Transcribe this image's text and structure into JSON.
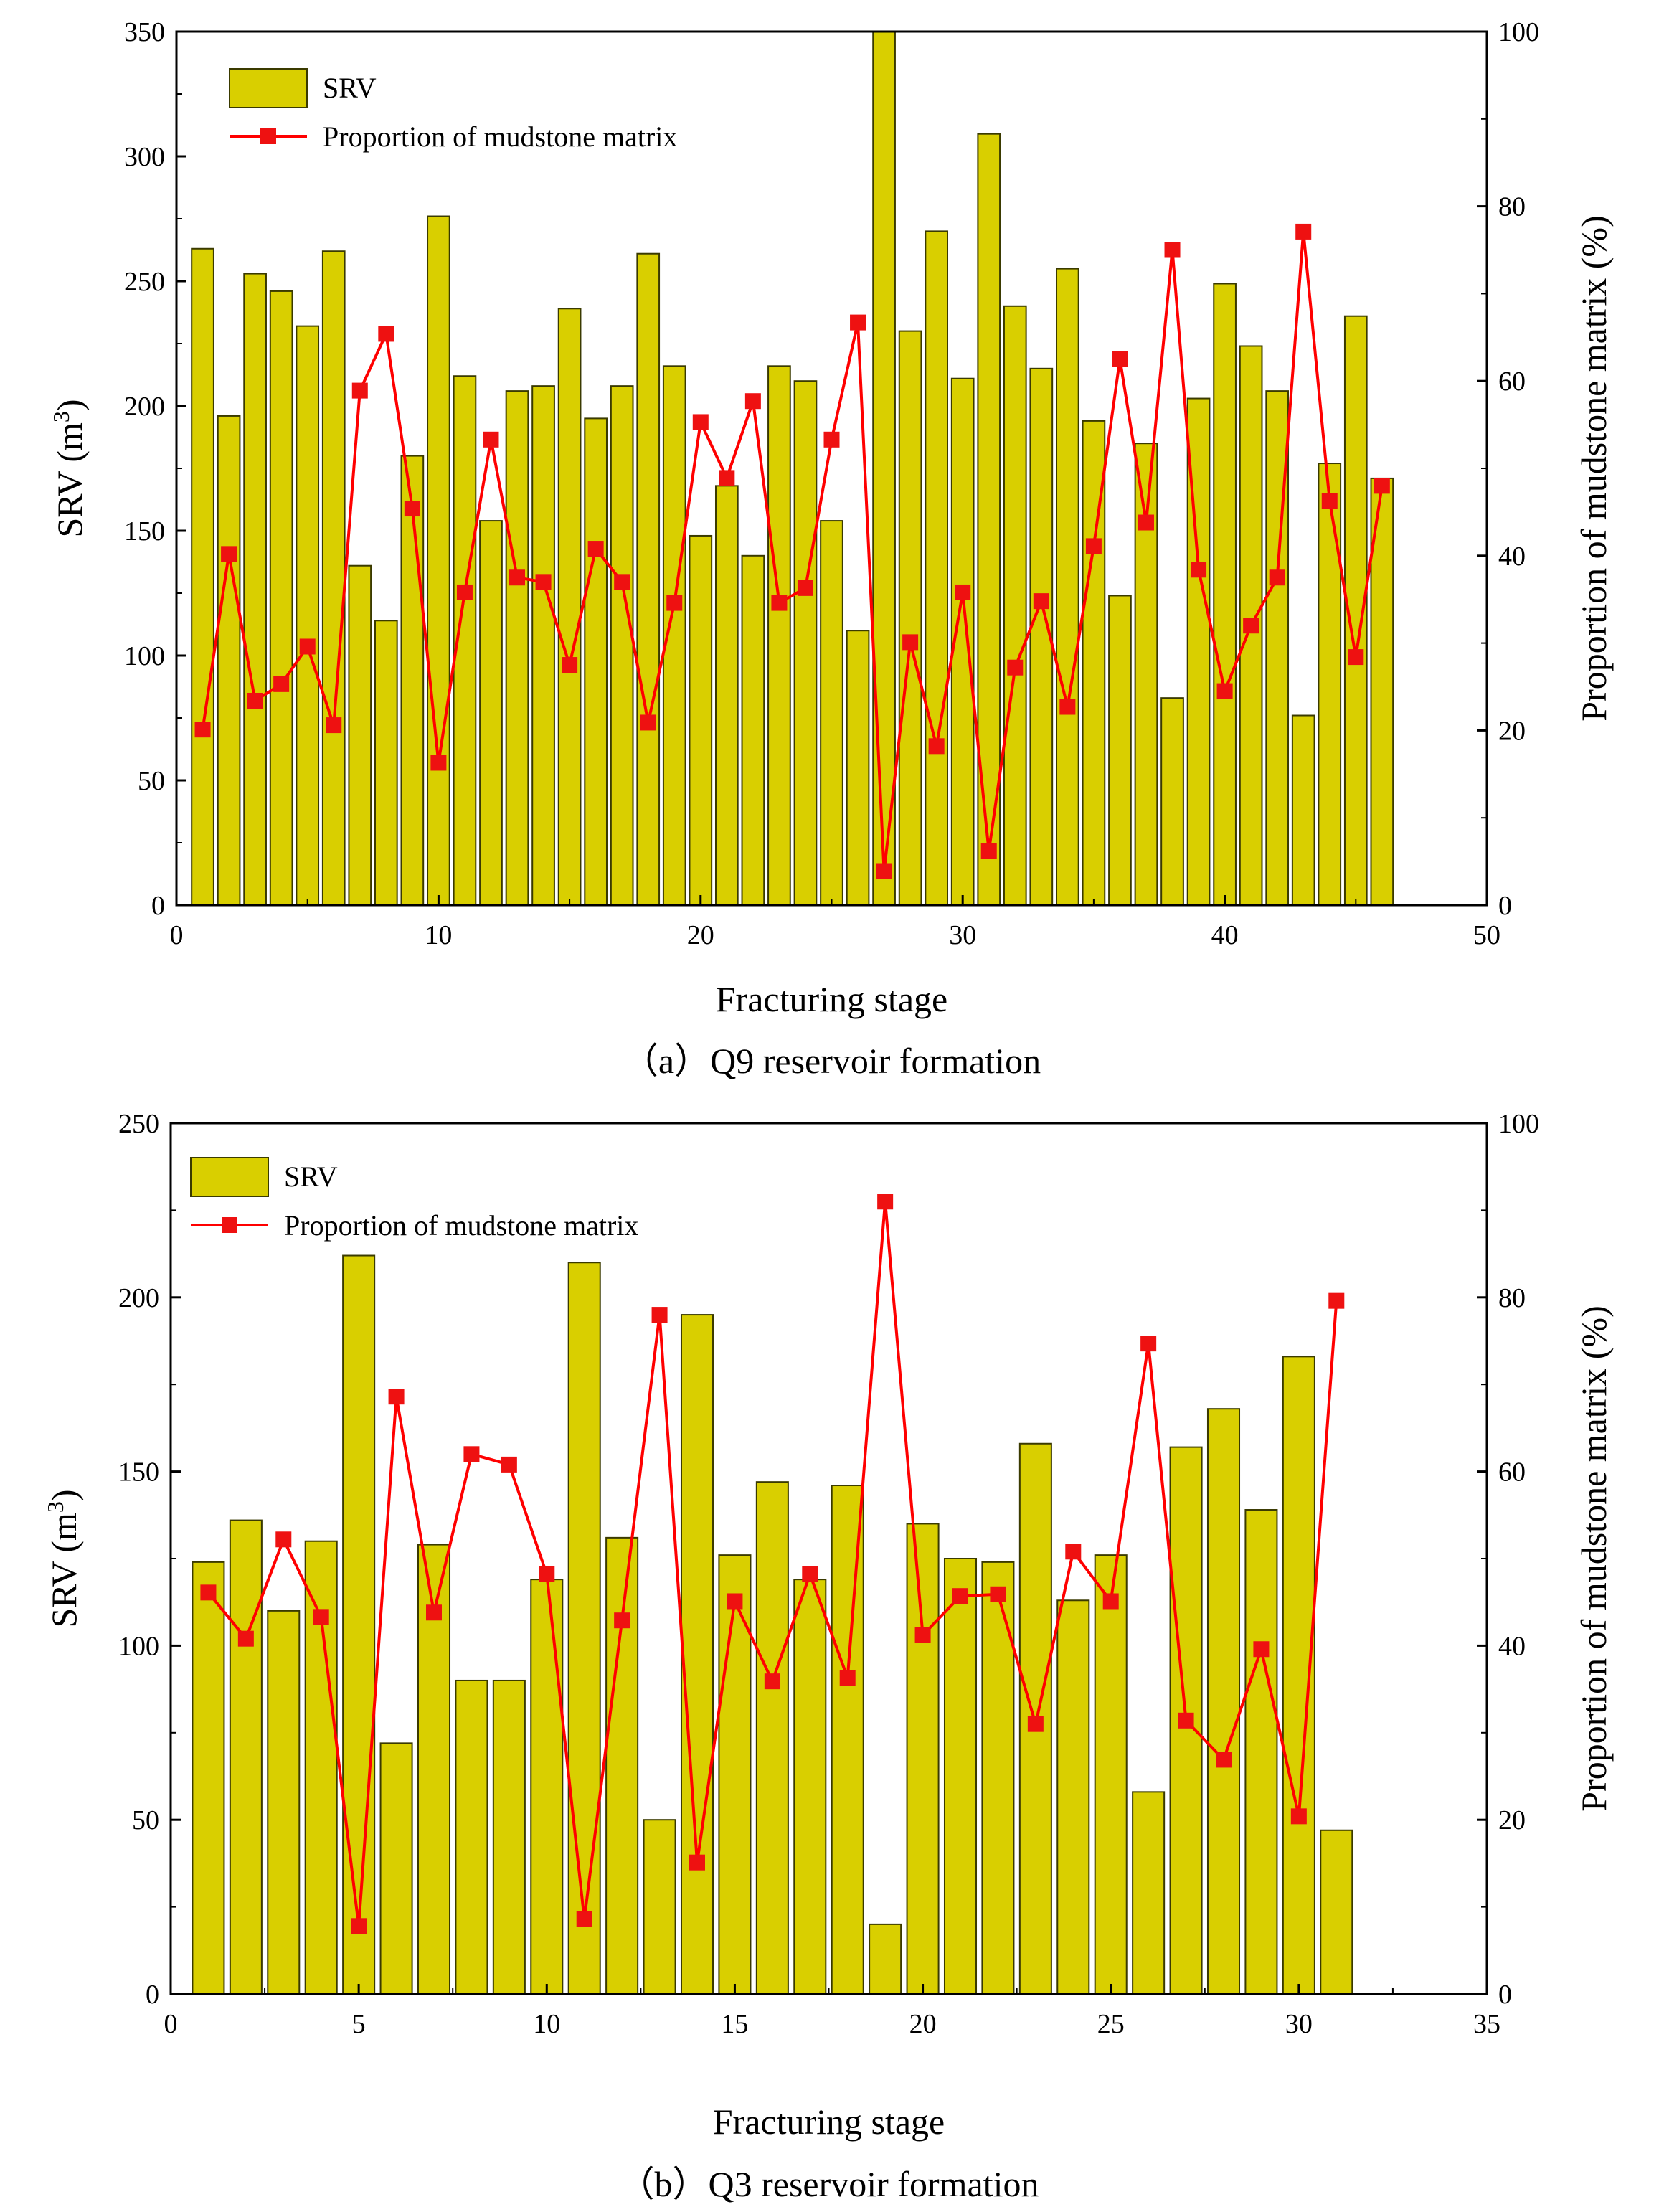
{
  "chart_data": [
    {
      "type": "bar+line",
      "caption": "（a）Q9 reservoir formation",
      "xlabel": "Fracturing stage",
      "ylabel_left_base": "SRV (m",
      "ylabel_left_sup": "3",
      "ylabel_left_end": ")",
      "ylabel_right": "Proportion of mudstone matrix (%)",
      "xlim": [
        0,
        50
      ],
      "ylim_left": [
        0,
        350
      ],
      "ylim_right": [
        0,
        100
      ],
      "xticks": [
        0,
        10,
        20,
        30,
        40,
        50
      ],
      "yticks_left": [
        0,
        50,
        100,
        150,
        200,
        250,
        300,
        350
      ],
      "yticks_right": [
        0,
        20,
        40,
        60,
        80,
        100
      ],
      "legend": {
        "position": "top-left",
        "bar_label": "SRV",
        "line_label": "Proportion of mudstone matrix"
      },
      "colors": {
        "bar_fill": "#d9cf00",
        "bar_stroke": "#3a3a00",
        "line": "#ff0000",
        "marker": "#ee1111"
      },
      "stages": [
        1,
        2,
        3,
        4,
        5,
        6,
        7,
        8,
        9,
        10,
        11,
        12,
        13,
        14,
        15,
        16,
        17,
        18,
        19,
        20,
        21,
        22,
        23,
        24,
        25,
        26,
        27,
        28,
        29,
        30,
        31,
        32,
        33,
        34,
        35,
        36,
        37,
        38,
        39,
        40,
        41,
        42,
        43,
        44,
        45,
        46
      ],
      "srv": [
        263,
        196,
        253,
        246,
        232,
        262,
        136,
        114,
        180,
        276,
        212,
        154,
        206,
        208,
        239,
        195,
        208,
        261,
        216,
        148,
        168,
        140,
        216,
        210,
        154,
        110,
        350,
        230,
        270,
        211,
        309,
        240,
        215,
        255,
        194,
        124,
        185,
        83,
        203,
        249,
        224,
        206,
        76,
        177,
        236,
        171
      ],
      "mudstone_pct": [
        20.1,
        40.2,
        23.4,
        25.3,
        29.6,
        20.6,
        58.9,
        65.4,
        45.4,
        16.3,
        35.8,
        53.3,
        37.5,
        37.0,
        27.5,
        40.8,
        37.0,
        20.9,
        34.6,
        55.3,
        48.9,
        57.7,
        34.6,
        36.3,
        53.3,
        66.7,
        3.9,
        30.1,
        18.2,
        35.8,
        6.2,
        27.2,
        34.8,
        22.7,
        41.1,
        62.5,
        43.8,
        75.0,
        38.4,
        24.5,
        32.0,
        37.5,
        77.1,
        46.3,
        28.4,
        48.0
      ]
    },
    {
      "type": "bar+line",
      "caption": "（b）Q3 reservoir formation",
      "xlabel": "Fracturing stage",
      "ylabel_left_base": "SRV (m",
      "ylabel_left_sup": "3",
      "ylabel_left_end": ")",
      "ylabel_right": "Proportion of mudstone matrix (%)",
      "xlim": [
        0,
        35
      ],
      "ylim_left": [
        0,
        250
      ],
      "ylim_right": [
        0,
        100
      ],
      "xticks": [
        0,
        5,
        10,
        15,
        20,
        25,
        30,
        35
      ],
      "yticks_left": [
        0,
        50,
        100,
        150,
        200,
        250
      ],
      "yticks_right": [
        0,
        20,
        40,
        60,
        80,
        100
      ],
      "legend": {
        "position": "top-left",
        "bar_label": "SRV",
        "line_label": "Proportion of mudstone matrix"
      },
      "colors": {
        "bar_fill": "#d9cf00",
        "bar_stroke": "#3a3a00",
        "line": "#ff0000",
        "marker": "#ee1111"
      },
      "stages": [
        1,
        2,
        3,
        4,
        5,
        6,
        7,
        8,
        9,
        10,
        11,
        12,
        13,
        14,
        15,
        16,
        17,
        18,
        19,
        20,
        21,
        22,
        23,
        24,
        25,
        26,
        27,
        28,
        29,
        30,
        31
      ],
      "srv": [
        124,
        136,
        110,
        130,
        212,
        72,
        129,
        90,
        90,
        119,
        210,
        131,
        50,
        195,
        126,
        147,
        119,
        146,
        20,
        135,
        125,
        124,
        158,
        113,
        126,
        58,
        157,
        168,
        139,
        183,
        47
      ],
      "mudstone_pct": [
        46.1,
        40.8,
        52.2,
        43.3,
        7.8,
        68.6,
        43.8,
        62.0,
        60.8,
        48.2,
        8.6,
        42.9,
        78.0,
        15.1,
        45.1,
        35.9,
        48.2,
        36.3,
        91.0,
        41.2,
        45.7,
        45.9,
        31.0,
        50.8,
        45.1,
        74.7,
        31.4,
        26.9,
        39.6,
        20.4,
        79.6
      ]
    }
  ]
}
